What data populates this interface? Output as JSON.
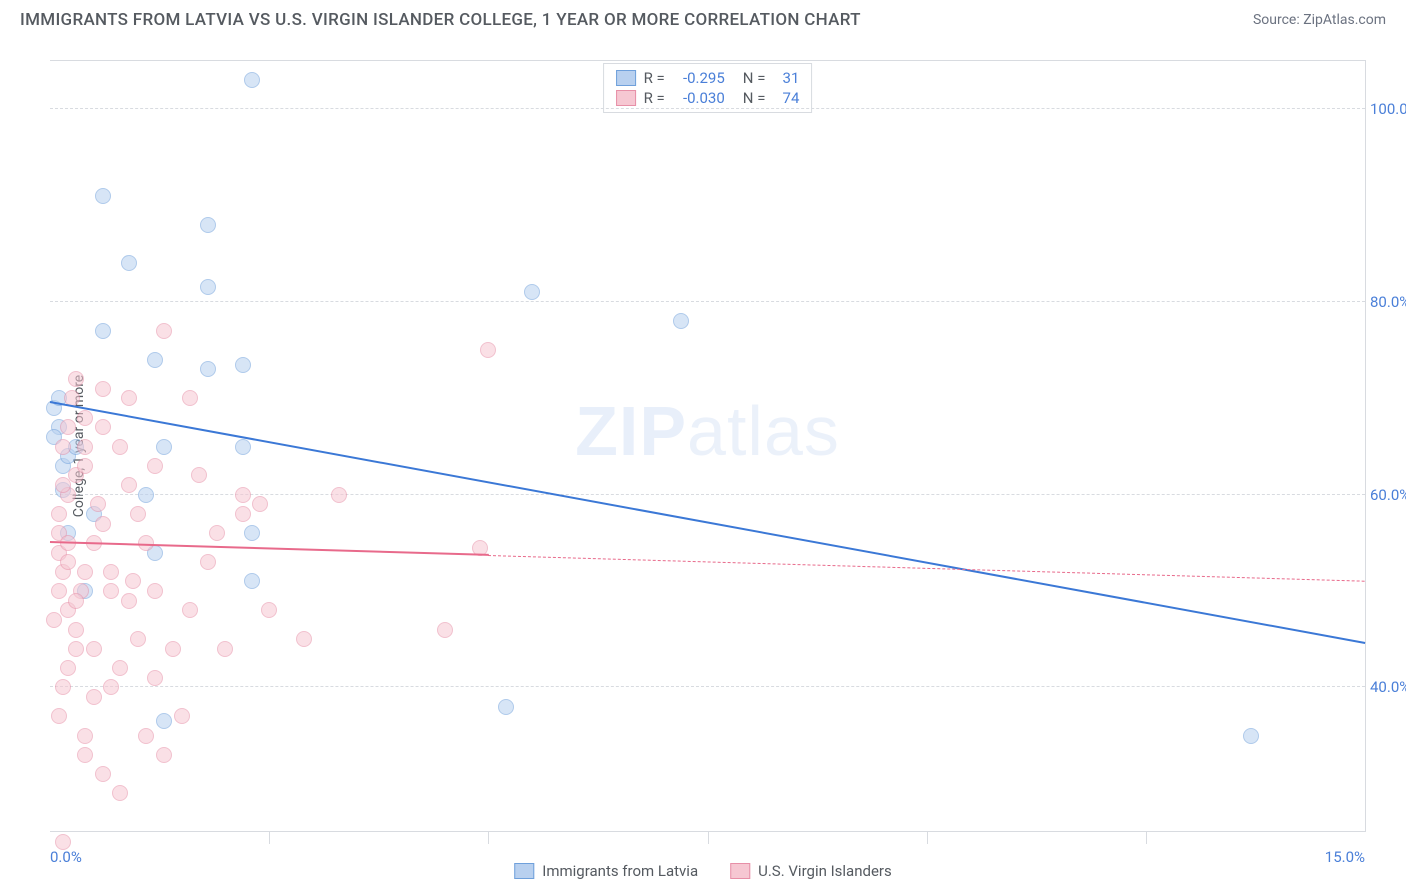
{
  "header": {
    "title": "IMMIGRANTS FROM LATVIA VS U.S. VIRGIN ISLANDER COLLEGE, 1 YEAR OR MORE CORRELATION CHART",
    "source": "Source: ZipAtlas.com"
  },
  "chart": {
    "type": "scatter",
    "ylabel": "College, 1 year or more",
    "watermark": "ZIPatlas",
    "xlim": [
      0,
      15
    ],
    "ylim": [
      25,
      105
    ],
    "xtick_labels": [
      "0.0%",
      "15.0%"
    ],
    "xtick_positions": [
      0,
      15
    ],
    "xtick_minor": [
      2.5,
      5.0,
      7.5,
      10.0,
      12.5
    ],
    "ytick_labels": [
      "40.0%",
      "60.0%",
      "80.0%",
      "100.0%"
    ],
    "ytick_positions": [
      40,
      60,
      80,
      100
    ],
    "background_color": "#ffffff",
    "grid_color": "#d8dbe0",
    "axis_label_color": "#555a60",
    "tick_label_color": "#4a7fd8",
    "marker_radius": 8,
    "marker_opacity": 0.55,
    "series": [
      {
        "name": "Immigrants from Latvia",
        "color_fill": "#b8d0ef",
        "color_stroke": "#6fa0db",
        "R": "-0.295",
        "N": "31",
        "trend": {
          "x0": 0,
          "y0": 69.5,
          "x1": 15,
          "y1": 44.5,
          "solid_until_x": 15,
          "color": "#3b78d6",
          "width": 2.5
        },
        "points": [
          [
            0.05,
            69
          ],
          [
            0.1,
            70
          ],
          [
            0.1,
            67
          ],
          [
            0.15,
            60.5
          ],
          [
            0.15,
            63
          ],
          [
            0.2,
            64
          ],
          [
            0.05,
            66
          ],
          [
            0.3,
            65
          ],
          [
            0.6,
            91
          ],
          [
            2.3,
            103
          ],
          [
            0.9,
            84
          ],
          [
            1.8,
            81.5
          ],
          [
            1.8,
            88
          ],
          [
            0.6,
            77
          ],
          [
            1.2,
            74
          ],
          [
            1.8,
            73
          ],
          [
            2.2,
            73.5
          ],
          [
            1.3,
            65
          ],
          [
            2.2,
            65
          ],
          [
            1.1,
            60
          ],
          [
            0.2,
            56
          ],
          [
            1.2,
            54
          ],
          [
            2.3,
            51
          ],
          [
            2.3,
            56
          ],
          [
            7.2,
            78
          ],
          [
            5.5,
            81
          ],
          [
            5.2,
            38
          ],
          [
            1.3,
            36.5
          ],
          [
            13.7,
            35
          ],
          [
            0.4,
            50
          ],
          [
            0.5,
            58
          ]
        ]
      },
      {
        "name": "U.S. Virgin Islanders",
        "color_fill": "#f6c7d2",
        "color_stroke": "#e78fa7",
        "R": "-0.030",
        "N": "74",
        "trend": {
          "x0": 0,
          "y0": 55,
          "x1": 15,
          "y1": 51,
          "solid_until_x": 5.0,
          "color": "#e86a8b",
          "width": 2
        },
        "points": [
          [
            0.1,
            54
          ],
          [
            0.1,
            56
          ],
          [
            0.2,
            55
          ],
          [
            0.1,
            50
          ],
          [
            0.15,
            52
          ],
          [
            0.2,
            53
          ],
          [
            0.1,
            58
          ],
          [
            0.2,
            60
          ],
          [
            0.3,
            62
          ],
          [
            0.15,
            61
          ],
          [
            0.4,
            63
          ],
          [
            0.4,
            65
          ],
          [
            0.6,
            67
          ],
          [
            0.6,
            71
          ],
          [
            0.9,
            70
          ],
          [
            1.3,
            77
          ],
          [
            0.8,
            65
          ],
          [
            0.9,
            61
          ],
          [
            1.0,
            58
          ],
          [
            1.1,
            55
          ],
          [
            1.2,
            50
          ],
          [
            1.2,
            63
          ],
          [
            1.6,
            70
          ],
          [
            1.7,
            62
          ],
          [
            2.2,
            60
          ],
          [
            2.2,
            58
          ],
          [
            2.4,
            59
          ],
          [
            3.3,
            60
          ],
          [
            2.9,
            45
          ],
          [
            2.5,
            48
          ],
          [
            2.0,
            44
          ],
          [
            1.4,
            44
          ],
          [
            1.2,
            41
          ],
          [
            1.0,
            45
          ],
          [
            0.8,
            42
          ],
          [
            0.7,
            40
          ],
          [
            0.5,
            44
          ],
          [
            0.5,
            39
          ],
          [
            0.4,
            35
          ],
          [
            0.4,
            33
          ],
          [
            0.6,
            31
          ],
          [
            0.8,
            29
          ],
          [
            1.1,
            35
          ],
          [
            1.3,
            33
          ],
          [
            1.5,
            37
          ],
          [
            1.6,
            48
          ],
          [
            0.2,
            48
          ],
          [
            0.3,
            46
          ],
          [
            0.3,
            44
          ],
          [
            0.2,
            42
          ],
          [
            0.15,
            40
          ],
          [
            0.1,
            37
          ],
          [
            4.5,
            46
          ],
          [
            4.9,
            54.5
          ],
          [
            5.0,
            75
          ],
          [
            0.4,
            68
          ],
          [
            0.3,
            72
          ],
          [
            0.25,
            70
          ],
          [
            0.55,
            59
          ],
          [
            0.6,
            57
          ],
          [
            0.5,
            55
          ],
          [
            0.4,
            52
          ],
          [
            0.35,
            50
          ],
          [
            0.3,
            49
          ],
          [
            0.9,
            49
          ],
          [
            0.95,
            51
          ],
          [
            0.7,
            52
          ],
          [
            0.7,
            50
          ],
          [
            1.8,
            53
          ],
          [
            1.9,
            56
          ],
          [
            0.15,
            65
          ],
          [
            0.2,
            67
          ],
          [
            0.15,
            24
          ],
          [
            0.05,
            47
          ]
        ]
      }
    ]
  },
  "legend_bottom": [
    {
      "label": "Immigrants from Latvia",
      "fill": "#b8d0ef",
      "stroke": "#6fa0db"
    },
    {
      "label": "U.S. Virgin Islanders",
      "fill": "#f6c7d2",
      "stroke": "#e78fa7"
    }
  ]
}
